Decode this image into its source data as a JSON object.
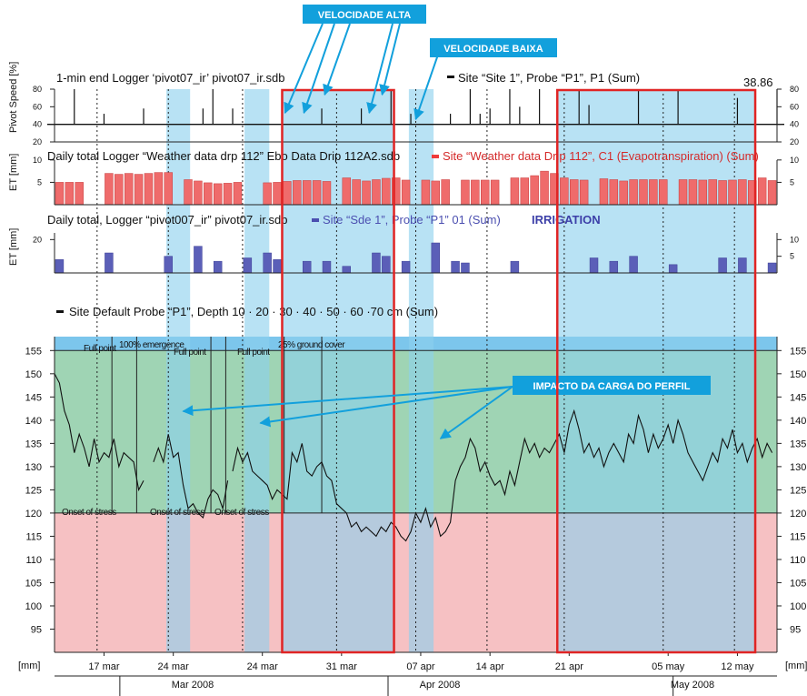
{
  "colors": {
    "stress_zone": "#f6c1c3",
    "optimal_zone": "#9fd4b4",
    "top_band": "#7cc6ec",
    "highlight": "#8dd0ee",
    "red_box": "#e02424",
    "callout": "#12a0dc",
    "et_bar": "#ef6b6b",
    "irrigation_bar": "#5b5fb8",
    "soil_line": "#111111"
  },
  "callouts": {
    "high_speed": "VELOCIDADE ALTA",
    "low_speed": "VELOCIDADE BAIXA",
    "profile_impact": "IMPACTO DA CARGA DO PERFIL"
  },
  "chart_data": [
    {
      "type": "line",
      "title": "1-min end Logger ‘pivot07_ir’ pivot07_ir.sdb",
      "legend": "Site “Site 1”, Probe “P1”, P1 (Sum)",
      "value_label": "38.86",
      "ylabel": "Pivot Speed [%]",
      "ylim": [
        20,
        80
      ],
      "yticks": [
        20,
        40,
        60,
        80
      ],
      "baseline": 40,
      "spikes": [
        {
          "day": 2,
          "value": 80
        },
        {
          "day": 5,
          "value": 52
        },
        {
          "day": 9,
          "value": 58
        },
        {
          "day": 15,
          "value": 58
        },
        {
          "day": 16,
          "value": 80
        },
        {
          "day": 18,
          "value": 58
        },
        {
          "day": 23,
          "value": 52
        },
        {
          "day": 27,
          "value": 58
        },
        {
          "day": 31,
          "value": 58
        },
        {
          "day": 34,
          "value": 80
        },
        {
          "day": 36,
          "value": 52
        },
        {
          "day": 40,
          "value": 52
        },
        {
          "day": 42,
          "value": 80
        },
        {
          "day": 43,
          "value": 52
        },
        {
          "day": 44,
          "value": 58
        },
        {
          "day": 46,
          "value": 80
        },
        {
          "day": 47,
          "value": 60
        },
        {
          "day": 49,
          "value": 80
        },
        {
          "day": 53,
          "value": 80
        },
        {
          "day": 54,
          "value": 62
        },
        {
          "day": 59,
          "value": 80
        },
        {
          "day": 63,
          "value": 80
        },
        {
          "day": 69,
          "value": 70
        },
        {
          "day": 73,
          "value": 80
        },
        {
          "day": 79,
          "value": 80
        },
        {
          "day": 82,
          "value": 80
        }
      ]
    },
    {
      "type": "bar",
      "title": "Daily total  Logger “Weather data drp 112” Ebo Data Drip 112A2.sdb",
      "legend": "Site “Weather data Drip 112”, C1 (Evapotranspiration) (Sum)",
      "ylabel": "ET [mm]",
      "ylim": [
        0,
        12
      ],
      "yticks": [
        5,
        10
      ],
      "values": [
        5,
        5,
        5,
        0,
        0,
        7,
        6.8,
        7,
        6.8,
        7,
        7.2,
        7.2,
        0,
        5.6,
        5.3,
        4.9,
        4.7,
        4.8,
        5.0,
        0,
        0,
        4.9,
        5.0,
        5.2,
        5.4,
        5.4,
        5.4,
        5.2,
        0,
        6,
        5.6,
        5.3,
        5.6,
        5.9,
        6.0,
        5.5,
        0,
        5.5,
        5.3,
        5.6,
        0,
        5.5,
        5.5,
        5.5,
        5.5,
        0,
        6,
        6,
        6.5,
        7.5,
        7,
        6,
        5.6,
        5.5,
        0,
        5.8,
        5.6,
        5.3,
        5.6,
        5.6,
        5.6,
        5.6,
        0,
        5.6,
        5.6,
        5.5,
        5.6,
        5.4,
        5.5,
        5.6,
        5.4,
        6,
        5.4
      ]
    },
    {
      "type": "bar",
      "title": "Daily total, Logger “pivot007_ir”  pivot07_ir.sdb",
      "legend": "Site “Sde 1”, Probe “P1” 01 (Sum)",
      "annotation": "IRRIGATION",
      "ylabel": "ET [mm]",
      "ylim": [
        0,
        24
      ],
      "yticks_left": [
        20
      ],
      "yticks_right": [
        5,
        10
      ],
      "values": [
        {
          "day": 0,
          "value": 8
        },
        {
          "day": 5,
          "value": 12
        },
        {
          "day": 11,
          "value": 10
        },
        {
          "day": 14,
          "value": 16
        },
        {
          "day": 16,
          "value": 7
        },
        {
          "day": 19,
          "value": 9
        },
        {
          "day": 21,
          "value": 12
        },
        {
          "day": 22,
          "value": 8
        },
        {
          "day": 25,
          "value": 7
        },
        {
          "day": 27,
          "value": 7
        },
        {
          "day": 29,
          "value": 4
        },
        {
          "day": 32,
          "value": 12
        },
        {
          "day": 33,
          "value": 10
        },
        {
          "day": 35,
          "value": 7
        },
        {
          "day": 38,
          "value": 18
        },
        {
          "day": 40,
          "value": 7
        },
        {
          "day": 41,
          "value": 6
        },
        {
          "day": 46,
          "value": 7
        },
        {
          "day": 54,
          "value": 9
        },
        {
          "day": 56,
          "value": 7
        },
        {
          "day": 58,
          "value": 10
        },
        {
          "day": 62,
          "value": 5
        },
        {
          "day": 67,
          "value": 9
        },
        {
          "day": 69,
          "value": 9
        },
        {
          "day": 72,
          "value": 6
        }
      ]
    },
    {
      "type": "line",
      "title": "Site Default Probe “P1”, Depth 10 · 20 · 30 · 40 · 50 · 60 ·70 cm (Sum)",
      "xlabel": "[mm]",
      "ylabel": "[mm]",
      "ylim": [
        90,
        158
      ],
      "yticks": [
        95,
        100,
        105,
        110,
        115,
        120,
        125,
        130,
        135,
        140,
        145,
        150,
        155
      ],
      "stress_threshold": 120,
      "full_point": 155,
      "x_tick_labels": [
        {
          "day": 5,
          "label": "17 mar"
        },
        {
          "day": 12,
          "label": "24 mar"
        },
        {
          "day": 21,
          "label": "24 mar"
        },
        {
          "day": 29,
          "label": "31 mar"
        },
        {
          "day": 37,
          "label": "07 apr"
        },
        {
          "day": 44,
          "label": "14 apr"
        },
        {
          "day": 52,
          "label": "21 apr"
        },
        {
          "day": 62,
          "label": "05 may"
        },
        {
          "day": 69,
          "label": "12 may"
        }
      ],
      "months": [
        "Mar 2008",
        "Apr 2008",
        "May 2008"
      ],
      "annotations": [
        "Full point",
        "100% emergence",
        "Full point",
        "Full point",
        "25% ground cover",
        "Onset of stress",
        "Onset of stress",
        "Onset of stress"
      ],
      "series": [
        {
          "segments": [
            [
              [
                0,
                150
              ],
              [
                0.5,
                148
              ],
              [
                1,
                142
              ],
              [
                1.5,
                139
              ],
              [
                2,
                133
              ],
              [
                2.5,
                137
              ],
              [
                3,
                134
              ],
              [
                3.5,
                130
              ],
              [
                4,
                136
              ],
              [
                4.5,
                131
              ],
              [
                5,
                133
              ],
              [
                5.5,
                132
              ],
              [
                6,
                136
              ],
              [
                6.5,
                130
              ],
              [
                7,
                133
              ],
              [
                8,
                131
              ],
              [
                8.5,
                125
              ],
              [
                9,
                127
              ]
            ],
            [
              [
                10,
                131
              ],
              [
                10.5,
                134
              ],
              [
                11,
                131
              ],
              [
                11.5,
                137
              ],
              [
                12,
                132
              ],
              [
                12.5,
                133
              ],
              [
                13,
                126
              ],
              [
                13.5,
                121
              ],
              [
                14,
                122
              ],
              [
                14.5,
                120
              ],
              [
                15,
                119
              ],
              [
                15.5,
                123
              ],
              [
                16,
                125
              ],
              [
                16.5,
                124
              ],
              [
                17,
                121
              ],
              [
                17.5,
                127
              ]
            ],
            [
              [
                18,
                129
              ],
              [
                18.5,
                134
              ],
              [
                19,
                131
              ],
              [
                19.5,
                133
              ],
              [
                20,
                129
              ],
              [
                20.5,
                128
              ],
              [
                21,
                127
              ],
              [
                21.5,
                126
              ],
              [
                22,
                123
              ],
              [
                22.5,
                125
              ],
              [
                23,
                124
              ],
              [
                23.5,
                123
              ],
              [
                24,
                133
              ],
              [
                24.5,
                131
              ],
              [
                25,
                135
              ],
              [
                25.5,
                129
              ],
              [
                26,
                128
              ],
              [
                26.5,
                130
              ],
              [
                27,
                131
              ],
              [
                27.5,
                128
              ],
              [
                28,
                127
              ],
              [
                28.5,
                122
              ],
              [
                29,
                121
              ],
              [
                29.5,
                120
              ],
              [
                30,
                117
              ],
              [
                30.5,
                118
              ],
              [
                31,
                116
              ],
              [
                31.5,
                117
              ],
              [
                32,
                116
              ],
              [
                32.5,
                115
              ],
              [
                33,
                117
              ],
              [
                33.5,
                116
              ],
              [
                34,
                118
              ],
              [
                34.5,
                117
              ],
              [
                35,
                115
              ],
              [
                35.5,
                114
              ],
              [
                36,
                116
              ],
              [
                36.5,
                120
              ],
              [
                37,
                118
              ],
              [
                37.5,
                121
              ],
              [
                38,
                117
              ],
              [
                38.5,
                119
              ],
              [
                39,
                115
              ],
              [
                39.5,
                116
              ],
              [
                40,
                118
              ],
              [
                40.5,
                127
              ],
              [
                41,
                130
              ],
              [
                41.5,
                132
              ],
              [
                42,
                136
              ],
              [
                42.5,
                134
              ],
              [
                43,
                129
              ],
              [
                43.5,
                131
              ],
              [
                44,
                128
              ],
              [
                44.5,
                126
              ],
              [
                45,
                127
              ],
              [
                45.5,
                124
              ],
              [
                46,
                129
              ],
              [
                46.5,
                126
              ],
              [
                47,
                131
              ],
              [
                47.5,
                136
              ],
              [
                48,
                133
              ],
              [
                48.5,
                135
              ],
              [
                49,
                132
              ],
              [
                49.5,
                134
              ],
              [
                50,
                133
              ],
              [
                50.5,
                135
              ],
              [
                51,
                137
              ],
              [
                51.5,
                133
              ],
              [
                52,
                139
              ],
              [
                52.5,
                142
              ],
              [
                53,
                138
              ],
              [
                53.5,
                133
              ],
              [
                54,
                135
              ],
              [
                54.5,
                132
              ],
              [
                55,
                134
              ],
              [
                55.5,
                130
              ],
              [
                56,
                133
              ],
              [
                56.5,
                135
              ],
              [
                57,
                133
              ],
              [
                57.5,
                131
              ],
              [
                58,
                137
              ],
              [
                58.5,
                135
              ],
              [
                59,
                141
              ],
              [
                59.5,
                138
              ],
              [
                60,
                133
              ],
              [
                60.5,
                137
              ],
              [
                61,
                134
              ],
              [
                61.5,
                136
              ],
              [
                62,
                139
              ],
              [
                62.5,
                135
              ],
              [
                63,
                140
              ],
              [
                63.5,
                137
              ],
              [
                64,
                133
              ],
              [
                64.5,
                131
              ],
              [
                65,
                129
              ],
              [
                65.5,
                127
              ],
              [
                66,
                130
              ],
              [
                66.5,
                133
              ],
              [
                67,
                131
              ],
              [
                67.5,
                136
              ],
              [
                68,
                134
              ],
              [
                68.5,
                138
              ],
              [
                69,
                133
              ],
              [
                69.5,
                135
              ],
              [
                70,
                131
              ],
              [
                70.5,
                134
              ],
              [
                71,
                136
              ],
              [
                71.5,
                132
              ],
              [
                72,
                135
              ],
              [
                72.5,
                133
              ]
            ]
          ]
        }
      ]
    }
  ]
}
